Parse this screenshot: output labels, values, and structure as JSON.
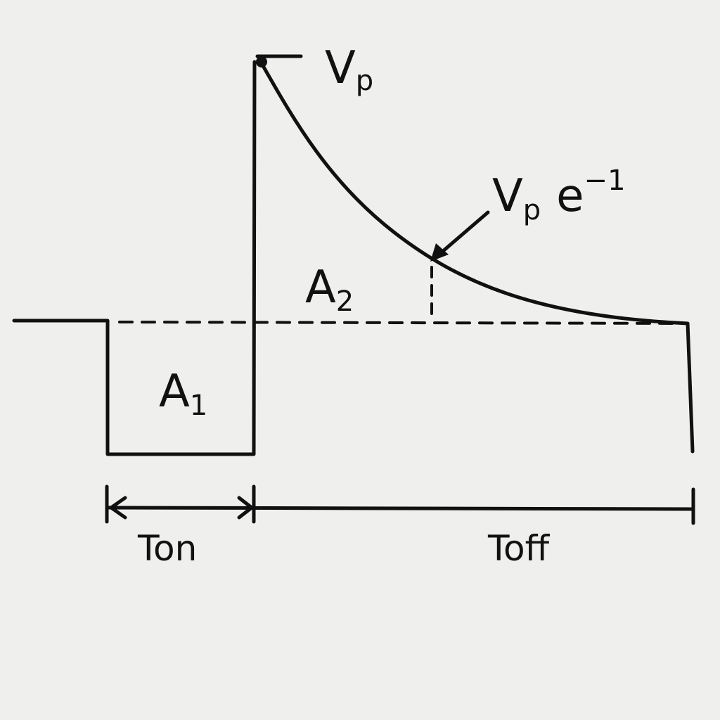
{
  "labels": {
    "peak_main": "V",
    "peak_sub": "p",
    "decay_main": "V",
    "decay_sub": "p",
    "decay_base": "e",
    "decay_exp": "−1",
    "area1_main": "A",
    "area1_sub": "1",
    "area2_main": "A",
    "area2_sub": "2",
    "ton": "Ton",
    "toff": "Toff"
  },
  "colors": {
    "background": "#efefed",
    "ink": "#111111"
  }
}
